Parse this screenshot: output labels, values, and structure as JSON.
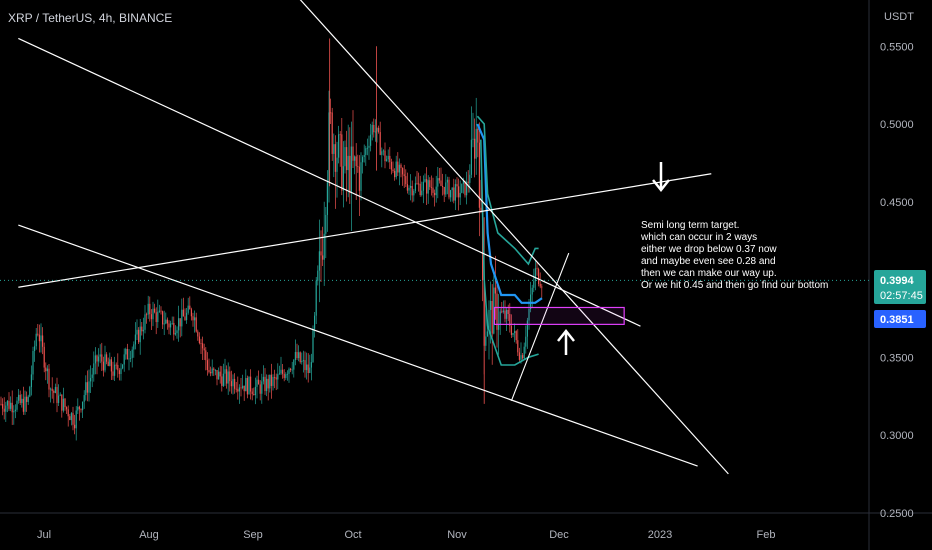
{
  "header": {
    "symbol_title": "XRP / TetherUS, 4h, BINANCE"
  },
  "price_scale": {
    "currency": "USDT",
    "ticks": [
      "0.5500",
      "0.5000",
      "0.4500",
      "0.3500",
      "0.3000",
      "0.2500"
    ],
    "last_price_label": "0.3994",
    "countdown_label": "02:57:45",
    "line_value_label": "0.3851",
    "last_price_color": "#26a69a",
    "line_value_color": "#2962ff"
  },
  "time_axis": {
    "ticks": [
      "Jul",
      "Aug",
      "Sep",
      "Oct",
      "Nov",
      "Dec",
      "2023",
      "Feb"
    ]
  },
  "annotation": {
    "lines": [
      "Semi long term target.",
      "which can occur in 2 ways",
      "either we drop below 0.37 now",
      "and maybe even see 0.28 and",
      "then we can make our way up.",
      "Or we hit 0.45 and then go find our bottom"
    ]
  },
  "colors": {
    "up": "#26a69a",
    "down": "#ef5350",
    "trendline": "#ffffff",
    "blue_line": "#2196f3",
    "green_band": "#26a69a",
    "box": "#e040fb"
  },
  "chart_data": {
    "type": "candlestick",
    "title": "XRP / TetherUS, 4h, BINANCE",
    "ylabel": "USDT",
    "ylim": [
      0.25,
      0.57
    ],
    "last_price": 0.3994,
    "line_value": 0.3851,
    "series": [
      {
        "name": "",
        "approx_close": [
          {
            "x": "Jun 24",
            "y": 0.32
          },
          {
            "x": "Jun 28",
            "y": 0.37
          },
          {
            "x": "Jul 3",
            "y": 0.33
          },
          {
            "x": "Jul 10",
            "y": 0.31
          },
          {
            "x": "Jul 17",
            "y": 0.35
          },
          {
            "x": "Jul 22",
            "y": 0.34
          },
          {
            "x": "Jul 28",
            "y": 0.36
          },
          {
            "x": "Aug 1",
            "y": 0.38
          },
          {
            "x": "Aug 8",
            "y": 0.37
          },
          {
            "x": "Aug 14",
            "y": 0.38
          },
          {
            "x": "Aug 19",
            "y": 0.34
          },
          {
            "x": "Aug 26",
            "y": 0.335
          },
          {
            "x": "Sep 2",
            "y": 0.33
          },
          {
            "x": "Sep 8",
            "y": 0.335
          },
          {
            "x": "Sep 14",
            "y": 0.35
          },
          {
            "x": "Sep 18",
            "y": 0.34
          },
          {
            "x": "Sep 22",
            "y": 0.43
          },
          {
            "x": "Sep 24",
            "y": 0.5
          },
          {
            "x": "Sep 28",
            "y": 0.47
          },
          {
            "x": "Oct 3",
            "y": 0.47
          },
          {
            "x": "Oct 7",
            "y": 0.5
          },
          {
            "x": "Oct 10",
            "y": 0.48
          },
          {
            "x": "Oct 14",
            "y": 0.47
          },
          {
            "x": "Oct 18",
            "y": 0.46
          },
          {
            "x": "Oct 23",
            "y": 0.46
          },
          {
            "x": "Oct 28",
            "y": 0.46
          },
          {
            "x": "Nov 1",
            "y": 0.455
          },
          {
            "x": "Nov 4",
            "y": 0.46
          },
          {
            "x": "Nov 7",
            "y": 0.5
          },
          {
            "x": "Nov 9",
            "y": 0.37
          },
          {
            "x": "Nov 12",
            "y": 0.38
          },
          {
            "x": "Nov 16",
            "y": 0.375
          },
          {
            "x": "Nov 20",
            "y": 0.35
          },
          {
            "x": "Nov 24",
            "y": 0.405
          },
          {
            "x": "Nov 26",
            "y": 0.3994
          }
        ]
      }
    ],
    "trendlines": [
      {
        "from": {
          "x": "Jun 20",
          "y": 0.555
        },
        "to": {
          "x": "Dec 26",
          "y": 0.37
        }
      },
      {
        "from": {
          "x": "Jun 20",
          "y": 0.435
        },
        "to": {
          "x": "Jan 12",
          "y": 0.28
        }
      },
      {
        "from": {
          "x": "Jun 20",
          "y": 0.395
        },
        "to": {
          "x": "Jan 16",
          "y": 0.468
        }
      },
      {
        "from": {
          "x": "Sep 8",
          "y": 0.597
        },
        "to": {
          "x": "Jan 21",
          "y": 0.275
        }
      }
    ],
    "zones": [
      {
        "from": {
          "x": "Nov 12",
          "y": 0.382
        },
        "to": {
          "x": "Dec 21",
          "y": 0.375
        }
      }
    ],
    "x_ticks": [
      "Jul",
      "Aug",
      "Sep",
      "Oct",
      "Nov",
      "Dec",
      "2023",
      "Feb"
    ],
    "y_ticks": [
      0.55,
      0.5,
      0.45,
      0.35,
      0.3,
      0.25
    ],
    "grid": false,
    "legend": "top-left"
  }
}
